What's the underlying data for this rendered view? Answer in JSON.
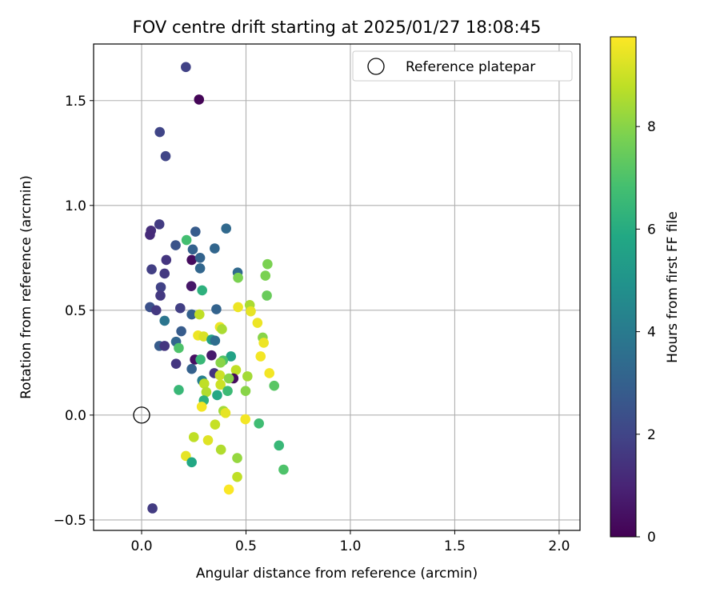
{
  "chart_data": {
    "type": "scatter",
    "title": "FOV centre drift starting at 2025/01/27 18:08:45",
    "xlabel": "Angular distance from reference (arcmin)",
    "ylabel": "Rotation from reference (arcmin)",
    "xlim": [
      -0.23,
      2.1
    ],
    "ylim": [
      -0.55,
      1.77
    ],
    "xticks": [
      0.0,
      0.5,
      1.0,
      1.5,
      2.0
    ],
    "xtick_labels": [
      "0.0",
      "0.5",
      "1.0",
      "1.5",
      "2.0"
    ],
    "yticks": [
      -0.5,
      0.0,
      0.5,
      1.0,
      1.5
    ],
    "ytick_labels": [
      "−0.5",
      "0.0",
      "0.5",
      "1.0",
      "1.5"
    ],
    "grid": true,
    "legend": {
      "position": "top-right",
      "entries": [
        {
          "label": "Reference platepar",
          "marker": "open-circle"
        }
      ]
    },
    "reference_point": {
      "x": 0.0,
      "y": 0.0
    },
    "colorbar": {
      "label": "Hours from first FF file",
      "colormap": "viridis",
      "range": [
        0,
        9.75
      ],
      "ticks": [
        0,
        2,
        4,
        6,
        8
      ],
      "tick_labels": [
        "0",
        "2",
        "4",
        "6",
        "8"
      ]
    },
    "points": [
      {
        "x": 0.212,
        "y": 1.66,
        "c": 1.9
      },
      {
        "x": 0.275,
        "y": 1.505,
        "c": 0.1
      },
      {
        "x": 0.087,
        "y": 1.35,
        "c": 2.0
      },
      {
        "x": 0.115,
        "y": 1.235,
        "c": 2.0
      },
      {
        "x": 0.085,
        "y": 0.91,
        "c": 1.7
      },
      {
        "x": 0.045,
        "y": 0.88,
        "c": 1.3
      },
      {
        "x": 0.04,
        "y": 0.86,
        "c": 1.2
      },
      {
        "x": 0.258,
        "y": 0.875,
        "c": 2.8
      },
      {
        "x": 0.405,
        "y": 0.89,
        "c": 3.3
      },
      {
        "x": 0.215,
        "y": 0.835,
        "c": 6.8
      },
      {
        "x": 0.163,
        "y": 0.81,
        "c": 2.5
      },
      {
        "x": 0.245,
        "y": 0.79,
        "c": 3.0
      },
      {
        "x": 0.35,
        "y": 0.795,
        "c": 3.2
      },
      {
        "x": 0.118,
        "y": 0.74,
        "c": 1.5
      },
      {
        "x": 0.24,
        "y": 0.74,
        "c": 0.3
      },
      {
        "x": 0.28,
        "y": 0.75,
        "c": 3.1
      },
      {
        "x": 0.048,
        "y": 0.695,
        "c": 1.8
      },
      {
        "x": 0.28,
        "y": 0.7,
        "c": 3.2
      },
      {
        "x": 0.11,
        "y": 0.675,
        "c": 1.6
      },
      {
        "x": 0.46,
        "y": 0.68,
        "c": 3.3
      },
      {
        "x": 0.462,
        "y": 0.655,
        "c": 7.8
      },
      {
        "x": 0.603,
        "y": 0.72,
        "c": 7.8
      },
      {
        "x": 0.593,
        "y": 0.665,
        "c": 7.8
      },
      {
        "x": 0.238,
        "y": 0.615,
        "c": 0.6
      },
      {
        "x": 0.092,
        "y": 0.61,
        "c": 1.9
      },
      {
        "x": 0.29,
        "y": 0.595,
        "c": 6.2
      },
      {
        "x": 0.09,
        "y": 0.57,
        "c": 1.6
      },
      {
        "x": 0.6,
        "y": 0.57,
        "c": 7.5
      },
      {
        "x": 0.04,
        "y": 0.515,
        "c": 2.4
      },
      {
        "x": 0.07,
        "y": 0.5,
        "c": 1.6
      },
      {
        "x": 0.185,
        "y": 0.51,
        "c": 1.8
      },
      {
        "x": 0.358,
        "y": 0.505,
        "c": 3.1
      },
      {
        "x": 0.462,
        "y": 0.515,
        "c": 9.5
      },
      {
        "x": 0.518,
        "y": 0.525,
        "c": 8.5
      },
      {
        "x": 0.523,
        "y": 0.495,
        "c": 9.4
      },
      {
        "x": 0.24,
        "y": 0.48,
        "c": 3.0
      },
      {
        "x": 0.277,
        "y": 0.48,
        "c": 8.8
      },
      {
        "x": 0.11,
        "y": 0.45,
        "c": 3.8
      },
      {
        "x": 0.555,
        "y": 0.44,
        "c": 9.5
      },
      {
        "x": 0.375,
        "y": 0.42,
        "c": 9.5
      },
      {
        "x": 0.385,
        "y": 0.41,
        "c": 8.5
      },
      {
        "x": 0.19,
        "y": 0.4,
        "c": 2.8
      },
      {
        "x": 0.58,
        "y": 0.37,
        "c": 8.0
      },
      {
        "x": 0.27,
        "y": 0.38,
        "c": 9.5
      },
      {
        "x": 0.297,
        "y": 0.375,
        "c": 9.2
      },
      {
        "x": 0.335,
        "y": 0.36,
        "c": 5.5
      },
      {
        "x": 0.352,
        "y": 0.355,
        "c": 3.5
      },
      {
        "x": 0.585,
        "y": 0.345,
        "c": 9.5
      },
      {
        "x": 0.165,
        "y": 0.35,
        "c": 3.2
      },
      {
        "x": 0.085,
        "y": 0.33,
        "c": 2.8
      },
      {
        "x": 0.11,
        "y": 0.33,
        "c": 1.5
      },
      {
        "x": 0.178,
        "y": 0.32,
        "c": 7.0
      },
      {
        "x": 0.428,
        "y": 0.28,
        "c": 5.6
      },
      {
        "x": 0.335,
        "y": 0.285,
        "c": 0.7
      },
      {
        "x": 0.57,
        "y": 0.28,
        "c": 9.6
      },
      {
        "x": 0.255,
        "y": 0.265,
        "c": 0.4
      },
      {
        "x": 0.282,
        "y": 0.265,
        "c": 6.5
      },
      {
        "x": 0.39,
        "y": 0.26,
        "c": 7.0
      },
      {
        "x": 0.378,
        "y": 0.25,
        "c": 8.0
      },
      {
        "x": 0.165,
        "y": 0.245,
        "c": 1.5
      },
      {
        "x": 0.24,
        "y": 0.22,
        "c": 3.0
      },
      {
        "x": 0.452,
        "y": 0.215,
        "c": 8.8
      },
      {
        "x": 0.612,
        "y": 0.2,
        "c": 9.6
      },
      {
        "x": 0.348,
        "y": 0.2,
        "c": 1.5
      },
      {
        "x": 0.375,
        "y": 0.19,
        "c": 9.0
      },
      {
        "x": 0.507,
        "y": 0.185,
        "c": 8.4
      },
      {
        "x": 0.44,
        "y": 0.175,
        "c": 0.3
      },
      {
        "x": 0.418,
        "y": 0.175,
        "c": 8.0
      },
      {
        "x": 0.29,
        "y": 0.165,
        "c": 4.2
      },
      {
        "x": 0.3,
        "y": 0.15,
        "c": 8.8
      },
      {
        "x": 0.378,
        "y": 0.145,
        "c": 9.0
      },
      {
        "x": 0.635,
        "y": 0.14,
        "c": 7.2
      },
      {
        "x": 0.178,
        "y": 0.12,
        "c": 6.5
      },
      {
        "x": 0.412,
        "y": 0.115,
        "c": 6.6
      },
      {
        "x": 0.498,
        "y": 0.115,
        "c": 8.0
      },
      {
        "x": 0.31,
        "y": 0.11,
        "c": 8.6
      },
      {
        "x": 0.362,
        "y": 0.095,
        "c": 5.8
      },
      {
        "x": 0.298,
        "y": 0.07,
        "c": 6.2
      },
      {
        "x": 0.288,
        "y": 0.04,
        "c": 9.6
      },
      {
        "x": 0.392,
        "y": 0.02,
        "c": 8.4
      },
      {
        "x": 0.402,
        "y": 0.01,
        "c": 9.4
      },
      {
        "x": 0.497,
        "y": -0.02,
        "c": 9.6
      },
      {
        "x": 0.562,
        "y": -0.04,
        "c": 6.7
      },
      {
        "x": 0.352,
        "y": -0.045,
        "c": 8.9
      },
      {
        "x": 0.25,
        "y": -0.105,
        "c": 8.8
      },
      {
        "x": 0.318,
        "y": -0.12,
        "c": 9.3
      },
      {
        "x": 0.658,
        "y": -0.145,
        "c": 6.5
      },
      {
        "x": 0.38,
        "y": -0.165,
        "c": 8.6
      },
      {
        "x": 0.212,
        "y": -0.195,
        "c": 9.4
      },
      {
        "x": 0.458,
        "y": -0.205,
        "c": 8.2
      },
      {
        "x": 0.24,
        "y": -0.225,
        "c": 5.8
      },
      {
        "x": 0.68,
        "y": -0.26,
        "c": 7.0
      },
      {
        "x": 0.458,
        "y": -0.295,
        "c": 8.8
      },
      {
        "x": 0.418,
        "y": -0.355,
        "c": 9.7
      },
      {
        "x": 0.052,
        "y": -0.445,
        "c": 1.7
      }
    ]
  }
}
